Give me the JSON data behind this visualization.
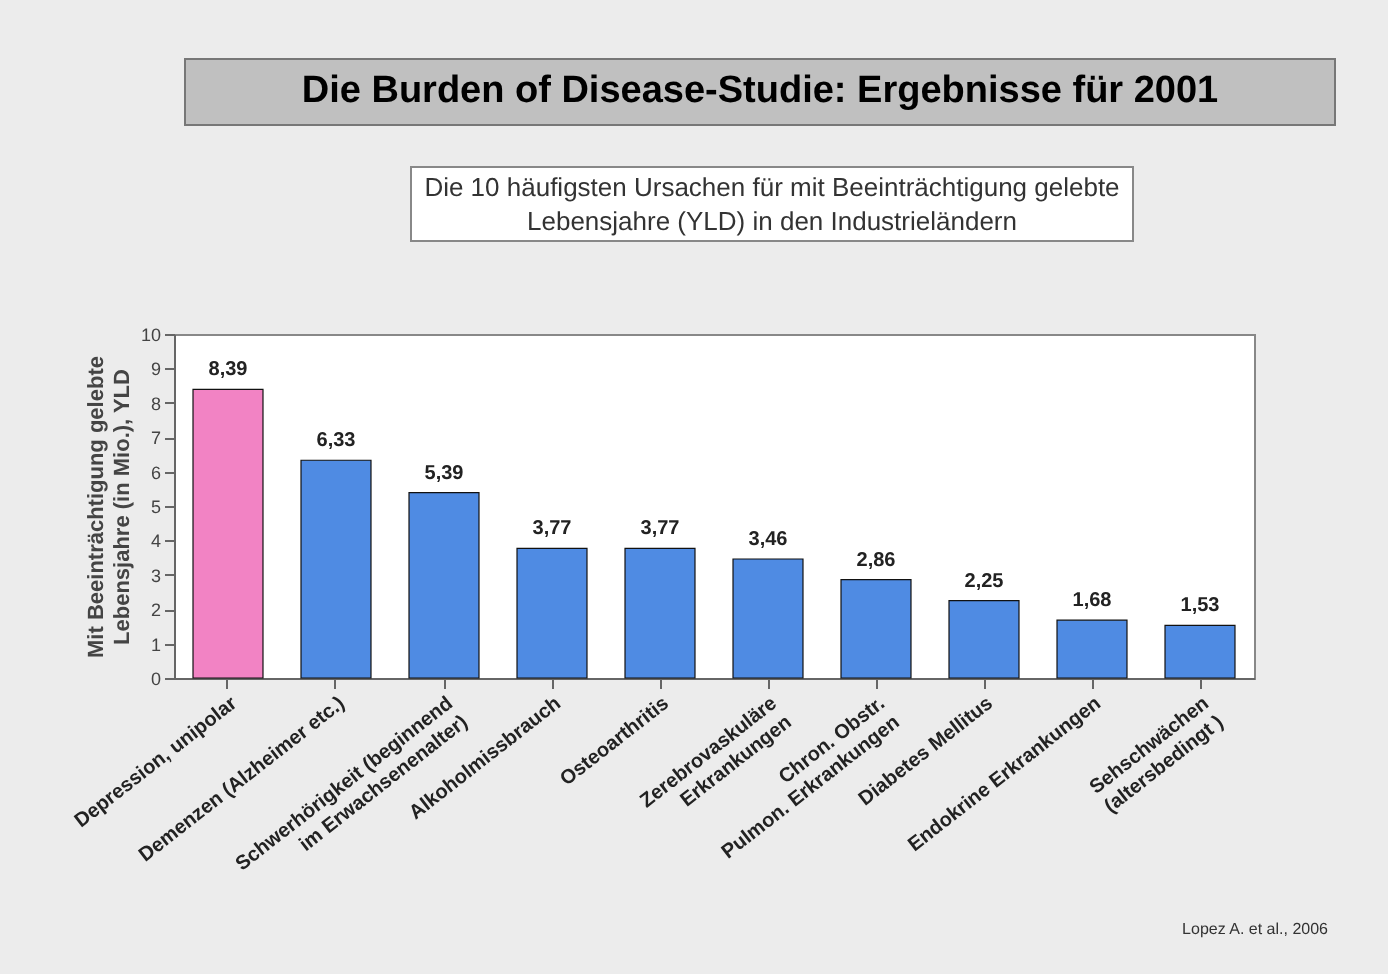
{
  "chart_data": {
    "type": "bar",
    "title": "Die Burden of Disease-Studie: Ergebnisse für 2001",
    "subtitle": "Die 10 häufigsten Ursachen für mit Beeinträchtigung gelebte Lebensjahre (YLD) in den Industrieländern",
    "ylabel": "Mit Beeinträchtigung gelebte\nLebensjahre (in Mio.), YLD",
    "categories": [
      "Depression, unipolar",
      "Demenzen (Alzheimer etc.)",
      "Schwerhörigkeit (beginnend\nim Erwachsenenalter)",
      "Alkoholmissbrauch",
      "Osteoarthritis",
      "Zerebrovaskuläre\nErkrankungen",
      "Chron. Obstr.\nPulmon. Erkrankungen",
      "Diabetes Mellitus",
      "Endokrine Erkrankungen",
      "Sehschwächen\n(altersbedingt )"
    ],
    "values": [
      8.39,
      6.33,
      5.39,
      3.77,
      3.77,
      3.46,
      2.86,
      2.25,
      1.68,
      1.53
    ],
    "colors": [
      "#f283c4",
      "#4f8be3",
      "#4f8be3",
      "#4f8be3",
      "#4f8be3",
      "#4f8be3",
      "#4f8be3",
      "#4f8be3",
      "#4f8be3",
      "#4f8be3"
    ],
    "value_labels": [
      "8,39",
      "6,33",
      "5,39",
      "3,77",
      "3,77",
      "3,46",
      "2,86",
      "2,25",
      "1,68",
      "1,53"
    ],
    "ylim": [
      0,
      10
    ],
    "yticks": [
      0,
      1,
      2,
      3,
      4,
      5,
      6,
      7,
      8,
      9,
      10
    ],
    "grid": false,
    "annotations": [
      "Lopez A. et al., 2006"
    ]
  }
}
